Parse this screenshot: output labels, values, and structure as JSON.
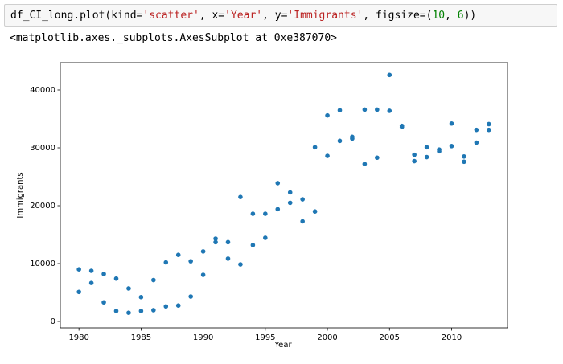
{
  "code": [
    "df_CI_long.plot(kind=",
    "'scatter'",
    ", x=",
    "'Year'",
    ", y=",
    "'Immigrants'",
    ", figsize=(",
    "10",
    ", ",
    "6",
    "))"
  ],
  "output": "<matplotlib.axes._subplots.AxesSubplot at 0xe387070>",
  "chart_data": {
    "type": "scatter",
    "xlabel": "Year",
    "ylabel": "Immigrants",
    "color": "#1f77b4",
    "grid": false,
    "xlim": [
      1978.5,
      2014.5
    ],
    "ylim": [
      -1111,
      44722
    ],
    "xticks": [
      1980,
      1985,
      1990,
      1995,
      2000,
      2005,
      2010
    ],
    "yticks": [
      0,
      10000,
      20000,
      30000,
      40000
    ],
    "x": [
      1980,
      1980,
      1981,
      1981,
      1982,
      1982,
      1983,
      1983,
      1984,
      1984,
      1985,
      1985,
      1986,
      1986,
      1987,
      1987,
      1988,
      1988,
      1989,
      1989,
      1990,
      1990,
      1991,
      1991,
      1992,
      1992,
      1993,
      1993,
      1994,
      1994,
      1995,
      1995,
      1996,
      1996,
      1997,
      1997,
      1998,
      1998,
      1999,
      1999,
      2000,
      2000,
      2001,
      2001,
      2002,
      2002,
      2003,
      2003,
      2004,
      2004,
      2005,
      2005,
      2006,
      2006,
      2007,
      2007,
      2008,
      2008,
      2009,
      2009,
      2010,
      2010,
      2011,
      2011,
      2012,
      2012,
      2013,
      2013
    ],
    "values": [
      9000,
      5100,
      8750,
      6650,
      8200,
      3300,
      7400,
      1800,
      5700,
      1500,
      4200,
      1800,
      7150,
      1950,
      10200,
      2600,
      11500,
      2750,
      10400,
      4300,
      12100,
      8050,
      14300,
      13700,
      13700,
      10850,
      21500,
      9850,
      18600,
      13200,
      18600,
      14450,
      23900,
      19400,
      22300,
      20500,
      21100,
      17300,
      30100,
      19000,
      35600,
      28600,
      36500,
      31200,
      31900,
      31600,
      36600,
      27200,
      36600,
      28300,
      42600,
      36400,
      33800,
      33600,
      28800,
      27700,
      30100,
      28400,
      29700,
      29400,
      34200,
      30300,
      28500,
      27600,
      33100,
      30900,
      34100,
      33100
    ]
  }
}
